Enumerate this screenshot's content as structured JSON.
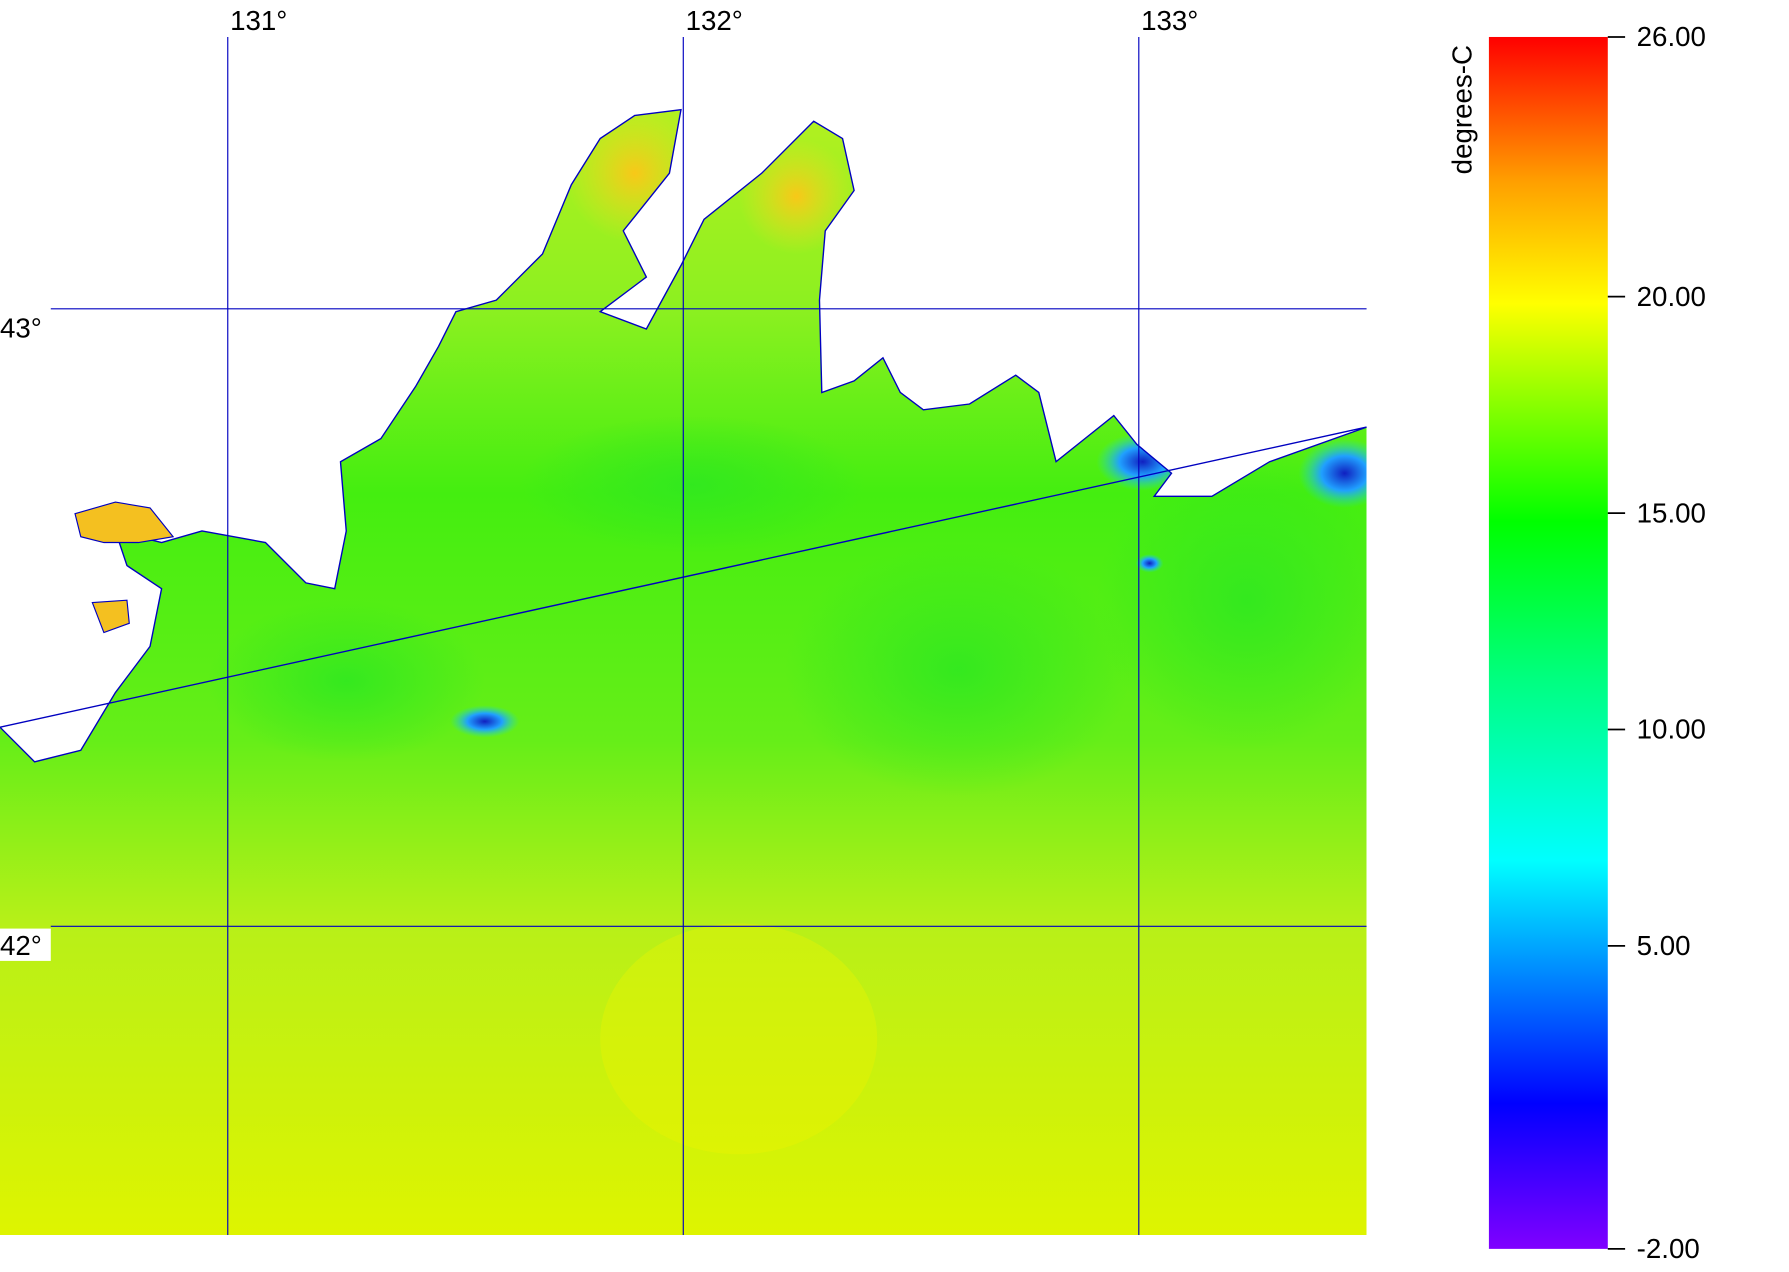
{
  "map": {
    "xlim": [
      130.5,
      133.5
    ],
    "ylim": [
      41.5,
      43.5
    ],
    "longitude_ticks": [
      {
        "value": 131,
        "label": "131°"
      },
      {
        "value": 132,
        "label": "132°"
      },
      {
        "value": 133,
        "label": "133°"
      }
    ],
    "latitude_ticks": [
      {
        "value": 43,
        "label": "43°"
      },
      {
        "value": 42,
        "label": "42°"
      }
    ],
    "colorbar": {
      "label": "degrees-C",
      "range": [
        -2,
        26
      ],
      "ticks": [
        {
          "value": 26,
          "label": "26.00"
        },
        {
          "value": 20,
          "label": "20.00"
        },
        {
          "value": 15,
          "label": "15.00"
        },
        {
          "value": 10,
          "label": "10.00"
        },
        {
          "value": 5,
          "label": "5.00"
        },
        {
          "value": -2,
          "label": "-2.00"
        }
      ]
    }
  }
}
